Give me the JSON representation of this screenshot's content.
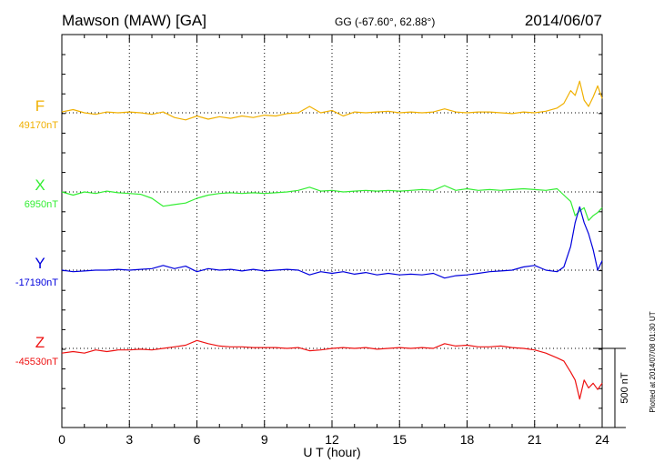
{
  "header": {
    "station": "Mawson (MAW)  [GA]",
    "coords": "GG (-67.60°,  62.88°)",
    "date": "2014/06/07"
  },
  "side_note": "Plotted at 2014/07/08 01:30 UT",
  "scale_label": "500 nT",
  "chart_data": {
    "type": "line",
    "xlabel": "U T (hour)",
    "xlim": [
      0,
      24
    ],
    "x_ticks": [
      "0",
      "3",
      "6",
      "9",
      "12",
      "15",
      "18",
      "21",
      "24"
    ],
    "grid": true,
    "scale_bar_nT": 500,
    "series": [
      {
        "name": "F",
        "baseline_label": "49170nT",
        "baseline_nT": 49170,
        "color": "#f0b000",
        "points": [
          [
            0,
            5
          ],
          [
            0.5,
            20
          ],
          [
            1,
            0
          ],
          [
            1.5,
            -10
          ],
          [
            2,
            5
          ],
          [
            2.5,
            0
          ],
          [
            3,
            5
          ],
          [
            3.5,
            0
          ],
          [
            4,
            -10
          ],
          [
            4.5,
            5
          ],
          [
            5,
            -30
          ],
          [
            5.5,
            -45
          ],
          [
            6,
            -20
          ],
          [
            6.5,
            -40
          ],
          [
            7,
            -25
          ],
          [
            7.5,
            -35
          ],
          [
            8,
            -20
          ],
          [
            8.5,
            -30
          ],
          [
            9,
            -15
          ],
          [
            9.5,
            -20
          ],
          [
            10,
            -5
          ],
          [
            10.5,
            0
          ],
          [
            11,
            40
          ],
          [
            11.5,
            0
          ],
          [
            12,
            15
          ],
          [
            12.5,
            -20
          ],
          [
            13,
            5
          ],
          [
            13.5,
            0
          ],
          [
            14,
            5
          ],
          [
            14.5,
            10
          ],
          [
            15,
            0
          ],
          [
            15.5,
            5
          ],
          [
            16,
            0
          ],
          [
            16.5,
            5
          ],
          [
            17,
            25
          ],
          [
            17.5,
            5
          ],
          [
            18,
            0
          ],
          [
            18.5,
            5
          ],
          [
            19,
            5
          ],
          [
            19.5,
            0
          ],
          [
            20,
            -5
          ],
          [
            20.5,
            5
          ],
          [
            21,
            0
          ],
          [
            21.5,
            10
          ],
          [
            22,
            30
          ],
          [
            22.3,
            60
          ],
          [
            22.6,
            140
          ],
          [
            22.8,
            110
          ],
          [
            23,
            200
          ],
          [
            23.2,
            80
          ],
          [
            23.4,
            40
          ],
          [
            23.6,
            100
          ],
          [
            23.8,
            170
          ],
          [
            24,
            90
          ]
        ]
      },
      {
        "name": "X",
        "baseline_label": "6950nT",
        "baseline_nT": 6950,
        "color": "#33ee33",
        "points": [
          [
            0,
            0
          ],
          [
            0.5,
            -20
          ],
          [
            1,
            0
          ],
          [
            1.5,
            -10
          ],
          [
            2,
            5
          ],
          [
            2.5,
            -5
          ],
          [
            3,
            -10
          ],
          [
            3.5,
            -15
          ],
          [
            4,
            -40
          ],
          [
            4.5,
            -90
          ],
          [
            5,
            -80
          ],
          [
            5.5,
            -70
          ],
          [
            6,
            -40
          ],
          [
            6.5,
            -20
          ],
          [
            7,
            -10
          ],
          [
            7.5,
            -5
          ],
          [
            8,
            -10
          ],
          [
            8.5,
            -5
          ],
          [
            9,
            -10
          ],
          [
            9.5,
            -5
          ],
          [
            10,
            0
          ],
          [
            10.5,
            10
          ],
          [
            11,
            30
          ],
          [
            11.5,
            5
          ],
          [
            12,
            10
          ],
          [
            12.5,
            0
          ],
          [
            13,
            5
          ],
          [
            13.5,
            10
          ],
          [
            14,
            5
          ],
          [
            14.5,
            10
          ],
          [
            15,
            5
          ],
          [
            15.5,
            10
          ],
          [
            16,
            15
          ],
          [
            16.5,
            10
          ],
          [
            17,
            40
          ],
          [
            17.5,
            10
          ],
          [
            18,
            20
          ],
          [
            18.5,
            10
          ],
          [
            19,
            15
          ],
          [
            19.5,
            10
          ],
          [
            20,
            15
          ],
          [
            20.5,
            20
          ],
          [
            21,
            15
          ],
          [
            21.5,
            10
          ],
          [
            22,
            20
          ],
          [
            22.3,
            -20
          ],
          [
            22.6,
            -60
          ],
          [
            22.8,
            -150
          ],
          [
            23,
            -120
          ],
          [
            23.2,
            -100
          ],
          [
            23.4,
            -180
          ],
          [
            23.6,
            -150
          ],
          [
            23.8,
            -130
          ],
          [
            24,
            -100
          ]
        ]
      },
      {
        "name": "Y",
        "baseline_label": "-17190nT",
        "baseline_nT": -17190,
        "color": "#0000dd",
        "points": [
          [
            0,
            0
          ],
          [
            0.5,
            -10
          ],
          [
            1,
            -5
          ],
          [
            1.5,
            0
          ],
          [
            2,
            0
          ],
          [
            2.5,
            5
          ],
          [
            3,
            0
          ],
          [
            3.5,
            5
          ],
          [
            4,
            10
          ],
          [
            4.5,
            30
          ],
          [
            5,
            10
          ],
          [
            5.5,
            25
          ],
          [
            6,
            -10
          ],
          [
            6.5,
            10
          ],
          [
            7,
            0
          ],
          [
            7.5,
            5
          ],
          [
            8,
            -5
          ],
          [
            8.5,
            5
          ],
          [
            9,
            -5
          ],
          [
            9.5,
            0
          ],
          [
            10,
            5
          ],
          [
            10.5,
            0
          ],
          [
            11,
            -30
          ],
          [
            11.5,
            -10
          ],
          [
            12,
            -20
          ],
          [
            12.5,
            -10
          ],
          [
            13,
            -25
          ],
          [
            13.5,
            -15
          ],
          [
            14,
            -30
          ],
          [
            14.5,
            -20
          ],
          [
            15,
            -30
          ],
          [
            15.5,
            -25
          ],
          [
            16,
            -30
          ],
          [
            16.5,
            -20
          ],
          [
            17,
            -50
          ],
          [
            17.5,
            -35
          ],
          [
            18,
            -30
          ],
          [
            18.5,
            -20
          ],
          [
            19,
            -10
          ],
          [
            19.5,
            -5
          ],
          [
            20,
            0
          ],
          [
            20.5,
            20
          ],
          [
            21,
            30
          ],
          [
            21.5,
            0
          ],
          [
            22,
            -10
          ],
          [
            22.3,
            20
          ],
          [
            22.6,
            150
          ],
          [
            22.8,
            300
          ],
          [
            23,
            400
          ],
          [
            23.2,
            300
          ],
          [
            23.4,
            230
          ],
          [
            23.6,
            130
          ],
          [
            23.8,
            0
          ],
          [
            24,
            60
          ]
        ]
      },
      {
        "name": "Z",
        "baseline_label": "-45530nT",
        "baseline_nT": -45530,
        "color": "#ee1111",
        "points": [
          [
            0,
            -30
          ],
          [
            0.5,
            -20
          ],
          [
            1,
            -30
          ],
          [
            1.5,
            -10
          ],
          [
            2,
            -20
          ],
          [
            2.5,
            -10
          ],
          [
            3,
            -10
          ],
          [
            3.5,
            -5
          ],
          [
            4,
            -10
          ],
          [
            4.5,
            0
          ],
          [
            5,
            10
          ],
          [
            5.5,
            20
          ],
          [
            6,
            50
          ],
          [
            6.5,
            30
          ],
          [
            7,
            15
          ],
          [
            7.5,
            10
          ],
          [
            8,
            10
          ],
          [
            8.5,
            5
          ],
          [
            9,
            5
          ],
          [
            9.5,
            5
          ],
          [
            10,
            0
          ],
          [
            10.5,
            5
          ],
          [
            11,
            -15
          ],
          [
            11.5,
            -10
          ],
          [
            12,
            0
          ],
          [
            12.5,
            5
          ],
          [
            13,
            0
          ],
          [
            13.5,
            5
          ],
          [
            14,
            -5
          ],
          [
            14.5,
            0
          ],
          [
            15,
            5
          ],
          [
            15.5,
            0
          ],
          [
            16,
            5
          ],
          [
            16.5,
            0
          ],
          [
            17,
            30
          ],
          [
            17.5,
            15
          ],
          [
            18,
            20
          ],
          [
            18.5,
            10
          ],
          [
            19,
            10
          ],
          [
            19.5,
            15
          ],
          [
            20,
            5
          ],
          [
            20.5,
            0
          ],
          [
            21,
            -10
          ],
          [
            21.5,
            -30
          ],
          [
            22,
            -60
          ],
          [
            22.3,
            -80
          ],
          [
            22.6,
            -150
          ],
          [
            22.8,
            -200
          ],
          [
            23,
            -320
          ],
          [
            23.2,
            -200
          ],
          [
            23.4,
            -250
          ],
          [
            23.6,
            -220
          ],
          [
            23.8,
            -260
          ],
          [
            24,
            -220
          ]
        ]
      }
    ]
  }
}
